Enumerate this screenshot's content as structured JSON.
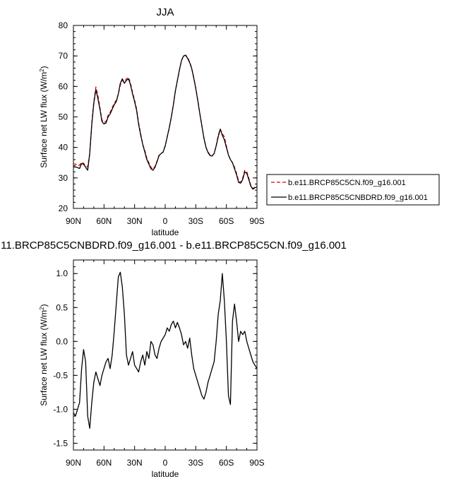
{
  "chart_data": [
    {
      "type": "line",
      "title": "JJA",
      "xlabel": "latitude",
      "ylabel": "Surface net LW flux (W/m",
      "ylabel_sup": "2",
      "ylabel_close": ")",
      "xlim": [
        90,
        -90
      ],
      "ylim": [
        20,
        80
      ],
      "x_ticks": [
        {
          "value": 90,
          "label": "90N"
        },
        {
          "value": 60,
          "label": "60N"
        },
        {
          "value": 30,
          "label": "30N"
        },
        {
          "value": 0,
          "label": "0"
        },
        {
          "value": -30,
          "label": "30S"
        },
        {
          "value": -60,
          "label": "60S"
        },
        {
          "value": -90,
          "label": "90S"
        }
      ],
      "y_ticks": [
        {
          "value": 20,
          "label": "20"
        },
        {
          "value": 30,
          "label": "30"
        },
        {
          "value": 40,
          "label": "40"
        },
        {
          "value": 50,
          "label": "50"
        },
        {
          "value": 60,
          "label": "60"
        },
        {
          "value": 70,
          "label": "70"
        },
        {
          "value": 80,
          "label": "80"
        }
      ],
      "legend_position": "right",
      "series": [
        {
          "name": "b.e11.BRCP85C5CN.f09_g16.001",
          "color": "#dd0000",
          "dash": "dashed",
          "x": [
            90,
            88,
            86,
            84,
            82,
            80,
            78,
            76,
            74,
            72,
            70,
            68,
            66,
            64,
            62,
            60,
            58,
            56,
            54,
            52,
            50,
            48,
            46,
            44,
            42,
            40,
            38,
            36,
            34,
            32,
            30,
            28,
            26,
            24,
            22,
            20,
            18,
            16,
            14,
            12,
            10,
            8,
            6,
            4,
            2,
            0,
            -2,
            -4,
            -6,
            -8,
            -10,
            -12,
            -14,
            -16,
            -18,
            -20,
            -22,
            -24,
            -26,
            -28,
            -30,
            -32,
            -34,
            -36,
            -38,
            -40,
            -42,
            -44,
            -46,
            -48,
            -50,
            -52,
            -54,
            -56,
            -58,
            -60,
            -62,
            -64,
            -66,
            -68,
            -70,
            -72,
            -74,
            -76,
            -78,
            -80,
            -82,
            -84,
            -86,
            -88,
            -90
          ],
          "values": [
            34.5,
            34.6,
            34.0,
            34.2,
            35.1,
            34.8,
            33.9,
            33.6,
            38.0,
            48.0,
            55.0,
            59.8,
            57.0,
            53.0,
            49.0,
            48.2,
            48.5,
            50.5,
            51.5,
            53.0,
            54.5,
            55.5,
            57.5,
            60.5,
            62.0,
            61.5,
            62.5,
            63.0,
            61.0,
            58.0,
            55.5,
            52.5,
            48.0,
            44.5,
            41.0,
            39.0,
            36.5,
            35.0,
            33.5,
            32.8,
            33.8,
            35.5,
            37.5,
            38.0,
            38.5,
            40.5,
            43.5,
            46.5,
            50.0,
            54.0,
            58.5,
            62.0,
            65.5,
            68.5,
            70.0,
            70.3,
            69.5,
            68.0,
            66.0,
            63.0,
            59.5,
            55.5,
            51.0,
            47.0,
            43.0,
            40.0,
            38.5,
            37.5,
            37.2,
            38.0,
            40.5,
            44.0,
            46.0,
            44.5,
            43.5,
            40.5,
            37.5,
            36.0,
            35.0,
            33.5,
            31.5,
            29.0,
            28.5,
            30.0,
            32.5,
            32.0,
            30.0,
            27.5,
            26.5,
            27.0,
            27.5
          ]
        },
        {
          "name": "b.e11.BRCP85C5CNBDRD.f09_g16.001",
          "color": "#000000",
          "dash": "solid",
          "x": [
            90,
            88,
            86,
            84,
            82,
            80,
            78,
            76,
            74,
            72,
            70,
            68,
            66,
            64,
            62,
            60,
            58,
            56,
            54,
            52,
            50,
            48,
            46,
            44,
            42,
            40,
            38,
            36,
            34,
            32,
            30,
            28,
            26,
            24,
            22,
            20,
            18,
            16,
            14,
            12,
            10,
            8,
            6,
            4,
            2,
            0,
            -2,
            -4,
            -6,
            -8,
            -10,
            -12,
            -14,
            -16,
            -18,
            -20,
            -22,
            -24,
            -26,
            -28,
            -30,
            -32,
            -34,
            -36,
            -38,
            -40,
            -42,
            -44,
            -46,
            -48,
            -50,
            -52,
            -54,
            -56,
            -58,
            -60,
            -62,
            -64,
            -66,
            -68,
            -70,
            -72,
            -74,
            -76,
            -78,
            -80,
            -82,
            -84,
            -86,
            -88,
            -90
          ],
          "values": [
            33.6,
            33.6,
            33.4,
            33.1,
            34.7,
            34.5,
            33.5,
            32.5,
            38.0,
            47.5,
            54.5,
            59.0,
            56.0,
            52.5,
            48.5,
            47.7,
            48.0,
            50.0,
            51.0,
            52.5,
            54.0,
            55.0,
            57.5,
            61.0,
            62.5,
            61.0,
            62.0,
            62.5,
            60.5,
            57.5,
            55.0,
            52.0,
            47.5,
            44.0,
            41.0,
            38.5,
            36.0,
            34.5,
            33.0,
            32.5,
            33.5,
            35.3,
            37.3,
            38.0,
            38.5,
            40.5,
            43.5,
            46.5,
            50.0,
            54.0,
            58.5,
            62.0,
            65.5,
            68.5,
            70.0,
            70.2,
            69.2,
            67.8,
            65.8,
            62.8,
            59.3,
            55.3,
            51.0,
            47.0,
            43.0,
            40.0,
            38.3,
            37.3,
            37.2,
            38.0,
            40.5,
            43.5,
            46.0,
            44.0,
            42.5,
            40.0,
            37.5,
            36.0,
            35.0,
            33.0,
            31.0,
            28.5,
            28.3,
            29.5,
            32.0,
            31.5,
            29.5,
            27.3,
            26.3,
            26.8,
            27.0
          ]
        }
      ]
    },
    {
      "type": "line",
      "title": "11.BRCP85C5CNBDRD.f09_g16.001 - b.e11.BRCP85C5CN.f09_g16.001",
      "xlabel": "latitude",
      "ylabel": "Surface net LW flux (W/m",
      "ylabel_sup": "2",
      "ylabel_close": ")",
      "xlim": [
        90,
        -90
      ],
      "ylim": [
        -1.6,
        1.2
      ],
      "x_ticks": [
        {
          "value": 90,
          "label": "90N"
        },
        {
          "value": 60,
          "label": "60N"
        },
        {
          "value": 30,
          "label": "30N"
        },
        {
          "value": 0,
          "label": "0"
        },
        {
          "value": -30,
          "label": "30S"
        },
        {
          "value": -60,
          "label": "60S"
        },
        {
          "value": -90,
          "label": "90S"
        }
      ],
      "y_ticks": [
        {
          "value": 1.0,
          "label": "1.0"
        },
        {
          "value": 0.5,
          "label": "0.5"
        },
        {
          "value": 0.0,
          "label": "0.0"
        },
        {
          "value": -0.5,
          "label": "-0.5"
        },
        {
          "value": -1.0,
          "label": "-1.0"
        },
        {
          "value": -1.5,
          "label": "-1.5"
        }
      ],
      "series": [
        {
          "color": "#000000",
          "dash": "solid",
          "x": [
            90,
            88,
            86,
            84,
            82,
            80,
            78,
            76,
            74,
            72,
            70,
            68,
            66,
            64,
            62,
            60,
            58,
            56,
            54,
            52,
            50,
            48,
            46,
            44,
            42,
            40,
            38,
            36,
            34,
            32,
            30,
            28,
            26,
            24,
            22,
            20,
            18,
            16,
            14,
            12,
            10,
            8,
            6,
            4,
            2,
            0,
            -2,
            -4,
            -6,
            -8,
            -10,
            -12,
            -14,
            -16,
            -18,
            -20,
            -22,
            -24,
            -26,
            -28,
            -30,
            -32,
            -34,
            -36,
            -38,
            -40,
            -42,
            -44,
            -46,
            -48,
            -50,
            -52,
            -54,
            -56,
            -58,
            -60,
            -62,
            -64,
            -66,
            -68,
            -70,
            -72,
            -74,
            -76,
            -78,
            -80,
            -82,
            -84,
            -86,
            -88,
            -90
          ],
          "values": [
            -1.05,
            -1.1,
            -1.0,
            -0.9,
            -0.4,
            -0.12,
            -0.3,
            -1.1,
            -1.28,
            -0.9,
            -0.6,
            -0.45,
            -0.55,
            -0.65,
            -0.5,
            -0.4,
            -0.3,
            -0.25,
            -0.4,
            -0.2,
            0.15,
            0.55,
            0.95,
            1.02,
            0.8,
            0.4,
            -0.2,
            -0.35,
            -0.25,
            -0.15,
            -0.35,
            -0.4,
            -0.45,
            -0.3,
            -0.2,
            -0.35,
            -0.15,
            -0.25,
            0.0,
            -0.05,
            -0.2,
            -0.25,
            -0.1,
            0.0,
            0.05,
            0.1,
            0.2,
            0.15,
            0.25,
            0.3,
            0.2,
            0.28,
            0.2,
            0.1,
            -0.05,
            0.0,
            -0.1,
            0.05,
            -0.2,
            -0.4,
            -0.5,
            -0.6,
            -0.7,
            -0.8,
            -0.85,
            -0.75,
            -0.6,
            -0.5,
            -0.4,
            -0.3,
            0.0,
            0.4,
            0.6,
            1.0,
            0.6,
            0.0,
            -0.8,
            -0.93,
            0.3,
            0.55,
            0.3,
            0.0,
            0.15,
            0.1,
            0.15,
            0.0,
            -0.1,
            -0.2,
            -0.3,
            -0.35,
            -0.4
          ]
        }
      ]
    }
  ]
}
